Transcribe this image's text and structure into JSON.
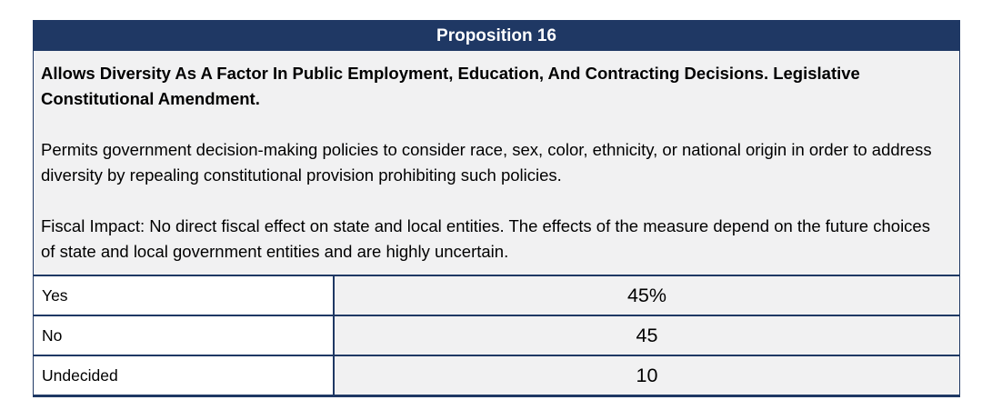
{
  "colors": {
    "navy": "#1f3864",
    "cell_gray": "#f1f1f2",
    "header_text": "#ffffff",
    "body_text": "#000000"
  },
  "table": {
    "header": "Proposition 16",
    "summary": {
      "ballot_label": "Allows Diversity As A Factor In Public Employment, Education, And Contracting Decisions. Legislative Constitutional Amendment.",
      "description": "Permits government decision-making policies to consider race, sex, color, ethnicity, or national origin in order to address diversity by repealing constitutional provision prohibiting such policies.",
      "fiscal_impact": "Fiscal Impact: No direct fiscal effect on state and local entities. The effects of the measure depend on the future choices of state and local government entities and are highly uncertain."
    },
    "results": [
      {
        "label": "Yes",
        "value": "45%"
      },
      {
        "label": "No",
        "value": "45"
      },
      {
        "label": "Undecided",
        "value": "10"
      }
    ]
  }
}
